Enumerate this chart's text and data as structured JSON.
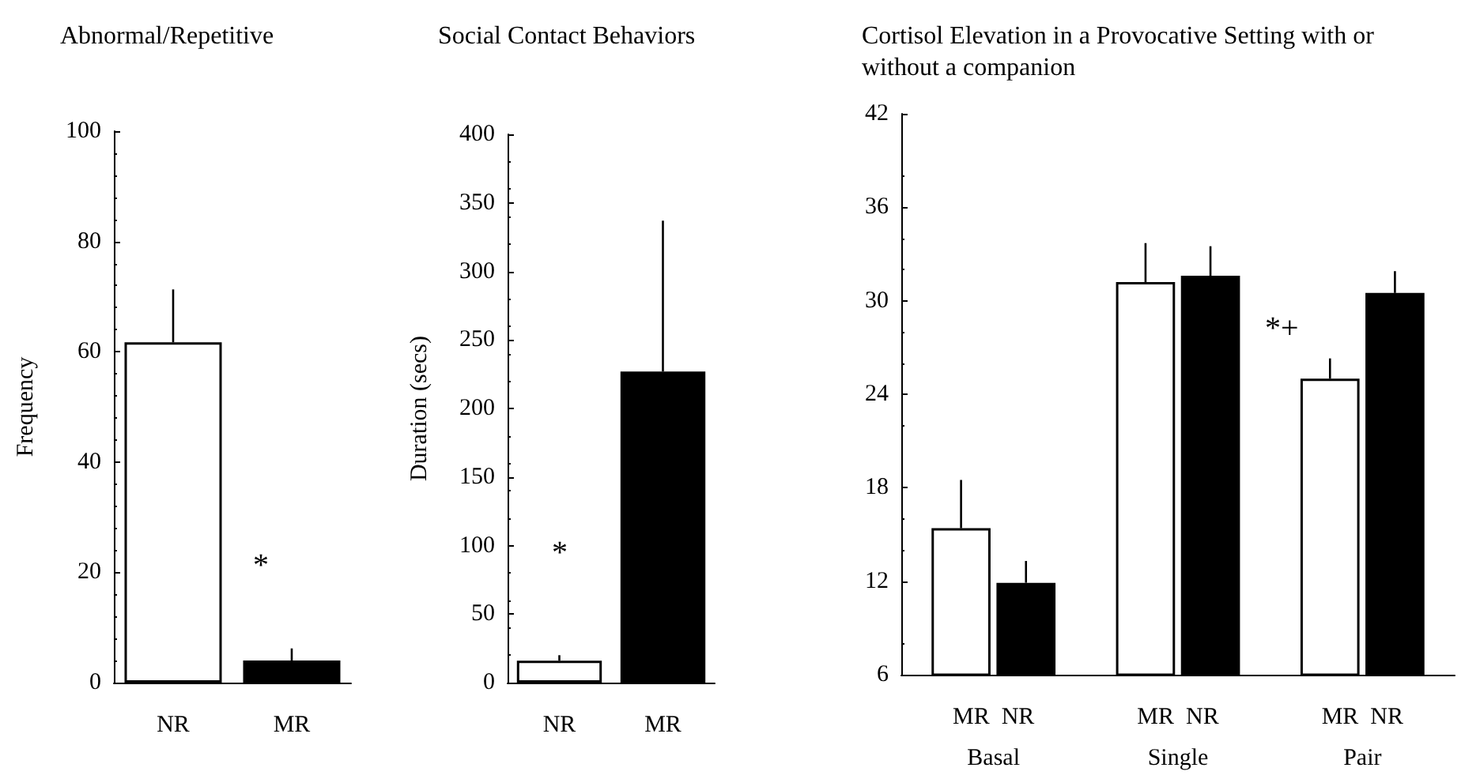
{
  "chart_data": [
    {
      "type": "bar",
      "title": "Abnormal/Repetitive",
      "ylabel": "Frequency",
      "categories": [
        "NR",
        "MR"
      ],
      "values": [
        61.7,
        4.0
      ],
      "errors": [
        9.6,
        2.2
      ],
      "colors": [
        "#ffffff",
        "#000000"
      ],
      "ylim": [
        0,
        100
      ],
      "yticks": [
        0,
        20,
        40,
        60,
        80,
        100
      ],
      "annotations": [
        "*"
      ]
    },
    {
      "type": "bar",
      "title": "Social Contact Behaviors",
      "ylabel": "Duration (secs)",
      "categories": [
        "NR",
        "MR"
      ],
      "values": [
        16,
        227
      ],
      "errors": [
        4,
        110
      ],
      "colors": [
        "#ffffff",
        "#000000"
      ],
      "ylim": [
        0,
        400
      ],
      "yticks": [
        0,
        50,
        100,
        150,
        200,
        250,
        300,
        350,
        400
      ],
      "annotations": [
        "*"
      ]
    },
    {
      "type": "bar",
      "title": "Cortisol Elevation in a Provocative Setting with or without a companion",
      "categories": [
        "Basal",
        "Single",
        "Pair"
      ],
      "series": [
        {
          "name": "MR",
          "color": "#ffffff",
          "values": [
            15.4,
            31.2,
            25.0
          ],
          "errors": [
            3.1,
            2.5,
            1.3
          ]
        },
        {
          "name": "NR",
          "color": "#000000",
          "values": [
            11.9,
            31.6,
            30.5
          ],
          "errors": [
            1.4,
            1.9,
            1.4
          ]
        }
      ],
      "ylim": [
        6,
        42
      ],
      "yticks": [
        6,
        12,
        18,
        24,
        30,
        36,
        42
      ],
      "annotations": [
        "*+"
      ]
    }
  ]
}
